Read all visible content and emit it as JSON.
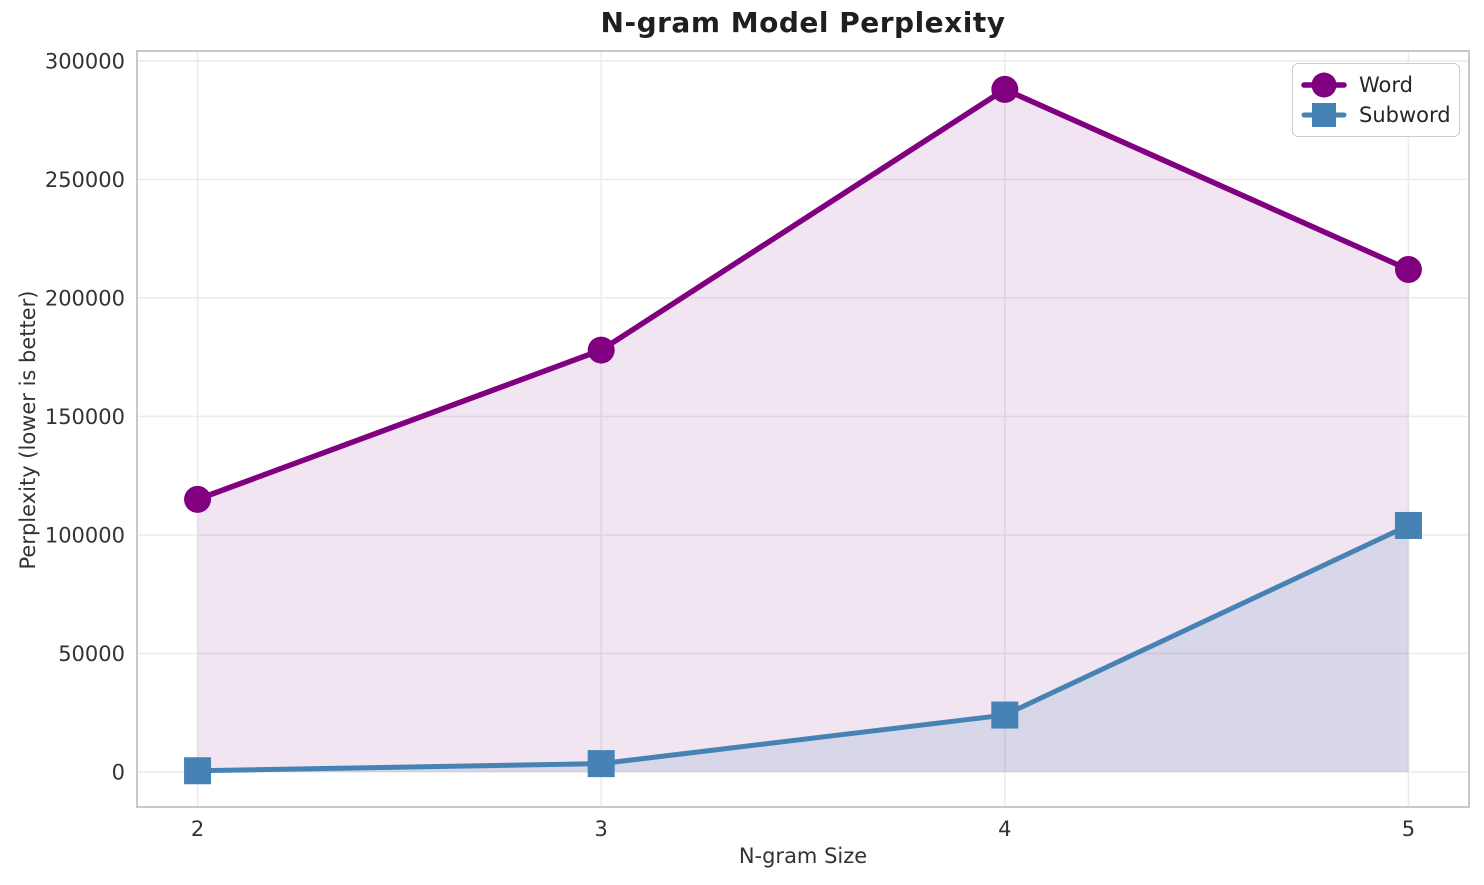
{
  "title": "N-gram Model Perplexity",
  "chart_data": {
    "type": "line",
    "title": "N-gram Model Perplexity",
    "xlabel": "N-gram Size",
    "ylabel": "Perplexity (lower is better)",
    "x": [
      2,
      3,
      4,
      5
    ],
    "series": [
      {
        "name": "Word",
        "values": [
          115000,
          178000,
          288000,
          212000
        ],
        "color": "#800080",
        "marker": "circle",
        "line_width": 5.5,
        "fill_alpha": 0.1
      },
      {
        "name": "Subword",
        "values": [
          500,
          3500,
          24000,
          104000
        ],
        "color": "#4682B4",
        "marker": "square",
        "line_width": 5,
        "fill_alpha": 0.15
      }
    ],
    "xticks": {
      "values": [
        2,
        3,
        4,
        5
      ],
      "labels": [
        "2",
        "3",
        "4",
        "5"
      ]
    },
    "yticks": {
      "values": [
        0,
        50000,
        100000,
        150000,
        200000,
        250000,
        300000
      ],
      "labels": [
        "0",
        "50000",
        "100000",
        "150000",
        "200000",
        "250000",
        "300000"
      ]
    },
    "xlim": [
      1.85,
      5.15
    ],
    "ylim": [
      -14800,
      304200
    ],
    "grid": true,
    "area_fill": true,
    "legend_position": "upper right"
  },
  "legend": {
    "items": [
      {
        "label": "Word"
      },
      {
        "label": "Subword"
      }
    ]
  },
  "colors": {
    "word_series": "#800080",
    "subword_series": "#4682B4",
    "gridline": "#ececec",
    "spine": "#c9c9c9",
    "title_text": "#1f1f1f",
    "tick_text": "#333333"
  }
}
